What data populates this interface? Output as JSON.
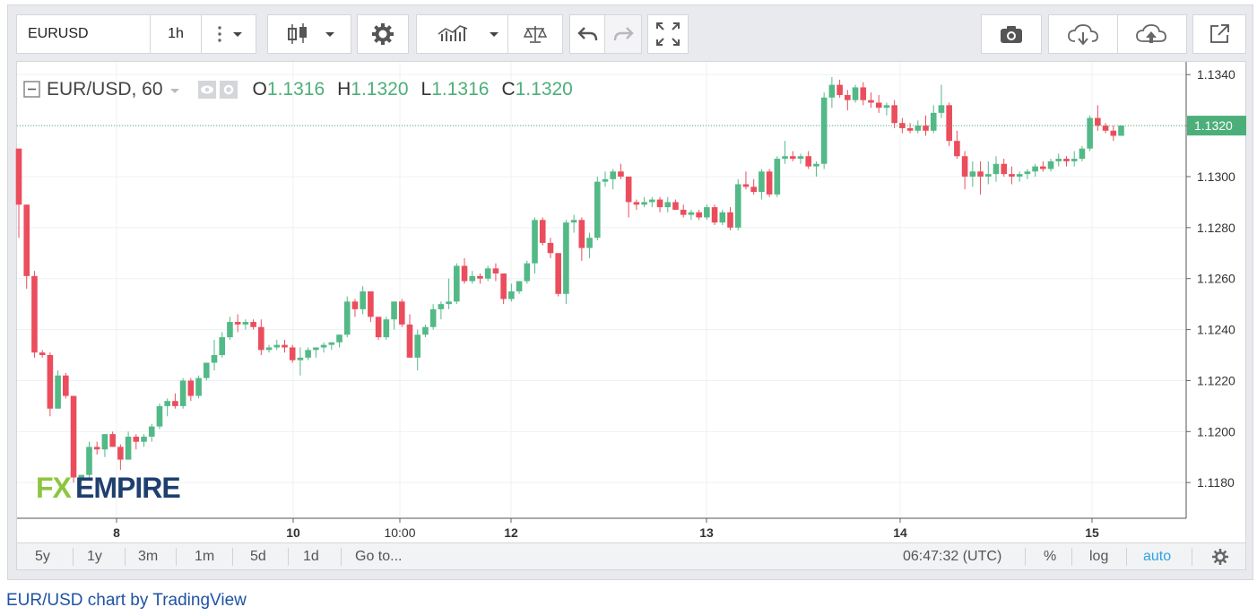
{
  "toolbar": {
    "symbol": "EURUSD",
    "interval": "1h",
    "icons": [
      "more-vert-icon",
      "chevron-down-icon",
      "candles-icon",
      "chevron-down-icon",
      "gear-icon",
      "indicators-icon",
      "chevron-down-icon",
      "compare-scale-icon",
      "undo-icon",
      "redo-icon",
      "fullscreen-icon",
      "camera-icon",
      "cloud-download-icon",
      "cloud-upload-icon",
      "popout-icon"
    ]
  },
  "legend": {
    "symbol_text": "EUR/USD, 60",
    "open_label": "O",
    "open_value": "1.1316",
    "high_label": "H",
    "high_value": "1.1320",
    "low_label": "L",
    "low_value": "1.1316",
    "close_label": "C",
    "close_value": "1.1320"
  },
  "watermark": "FXEMPIRE",
  "bottombar": {
    "ranges": [
      "5y",
      "1y",
      "3m",
      "1m",
      "5d",
      "1d"
    ],
    "goto": "Go to...",
    "time": "06:47:32 (UTC)",
    "percent": "%",
    "log": "log",
    "auto": "auto"
  },
  "footer": "EUR/USD chart by TradingView",
  "colors": {
    "up": "#53b987",
    "down": "#eb4d5c",
    "last_price": "#4caf7a",
    "auto": "#2fa3e3"
  },
  "chart_data": {
    "type": "candlestick",
    "yticks": [
      "1.1180",
      "1.1200",
      "1.1220",
      "1.1240",
      "1.1260",
      "1.1280",
      "1.1300",
      "1.1320",
      "1.1340"
    ],
    "xticks": [
      "8",
      "10",
      "10:00",
      "12",
      "13",
      "14",
      "15"
    ],
    "ylim": [
      1.1166,
      1.1345
    ],
    "last_price": "1.1320",
    "grid": true,
    "candles": [
      [
        1.1311,
        1.1311,
        1.1276,
        1.1289
      ],
      [
        1.1289,
        1.1289,
        1.1256,
        1.1261
      ],
      [
        1.1261,
        1.1263,
        1.1229,
        1.1231
      ],
      [
        1.1231,
        1.1232,
        1.1229,
        1.123
      ],
      [
        1.123,
        1.1231,
        1.1206,
        1.1209
      ],
      [
        1.1209,
        1.1224,
        1.1209,
        1.1222
      ],
      [
        1.1222,
        1.1223,
        1.1213,
        1.1214
      ],
      [
        1.1214,
        1.1214,
        1.118,
        1.1182
      ],
      [
        1.1182,
        1.1183,
        1.118,
        1.1183
      ],
      [
        1.1183,
        1.1196,
        1.1182,
        1.1194
      ],
      [
        1.1194,
        1.1196,
        1.1191,
        1.1193
      ],
      [
        1.1193,
        1.1199,
        1.119,
        1.1199
      ],
      [
        1.1199,
        1.12,
        1.1194,
        1.1194
      ],
      [
        1.1194,
        1.1195,
        1.1185,
        1.1189
      ],
      [
        1.1189,
        1.12,
        1.1189,
        1.1198
      ],
      [
        1.1198,
        1.1199,
        1.1193,
        1.1196
      ],
      [
        1.1196,
        1.1199,
        1.1194,
        1.1198
      ],
      [
        1.1198,
        1.1203,
        1.1196,
        1.1202
      ],
      [
        1.1202,
        1.1211,
        1.1201,
        1.121
      ],
      [
        1.121,
        1.1213,
        1.1206,
        1.1212
      ],
      [
        1.1212,
        1.1215,
        1.1209,
        1.121
      ],
      [
        1.121,
        1.1221,
        1.1209,
        1.122
      ],
      [
        1.122,
        1.1221,
        1.1212,
        1.1214
      ],
      [
        1.1214,
        1.1222,
        1.1213,
        1.1221
      ],
      [
        1.1221,
        1.1227,
        1.122,
        1.1227
      ],
      [
        1.1227,
        1.1236,
        1.1224,
        1.123
      ],
      [
        1.123,
        1.1239,
        1.1229,
        1.1237
      ],
      [
        1.1237,
        1.1245,
        1.1236,
        1.1243
      ],
      [
        1.1243,
        1.1246,
        1.1239,
        1.1242
      ],
      [
        1.1242,
        1.1244,
        1.124,
        1.1243
      ],
      [
        1.1243,
        1.1244,
        1.124,
        1.1241
      ],
      [
        1.1241,
        1.1244,
        1.123,
        1.1232
      ],
      [
        1.1232,
        1.1234,
        1.1231,
        1.1233
      ],
      [
        1.1233,
        1.1236,
        1.1232,
        1.1234
      ],
      [
        1.1234,
        1.1236,
        1.1231,
        1.1233
      ],
      [
        1.1233,
        1.1234,
        1.1227,
        1.1228
      ],
      [
        1.1228,
        1.1233,
        1.1222,
        1.1229
      ],
      [
        1.1229,
        1.1233,
        1.1228,
        1.1232
      ],
      [
        1.1232,
        1.1233,
        1.1229,
        1.1233
      ],
      [
        1.1233,
        1.1235,
        1.1231,
        1.1234
      ],
      [
        1.1234,
        1.1235,
        1.1232,
        1.1235
      ],
      [
        1.1235,
        1.1238,
        1.1233,
        1.1238
      ],
      [
        1.1238,
        1.1253,
        1.1237,
        1.1251
      ],
      [
        1.1251,
        1.1252,
        1.1245,
        1.1248
      ],
      [
        1.1248,
        1.1257,
        1.1246,
        1.1255
      ],
      [
        1.1255,
        1.1255,
        1.1243,
        1.1245
      ],
      [
        1.1245,
        1.1245,
        1.1236,
        1.1237
      ],
      [
        1.1237,
        1.1245,
        1.1236,
        1.1244
      ],
      [
        1.1244,
        1.125,
        1.124,
        1.1251
      ],
      [
        1.1251,
        1.1252,
        1.1241,
        1.1242
      ],
      [
        1.1242,
        1.1246,
        1.1229,
        1.1229
      ],
      [
        1.1229,
        1.124,
        1.1224,
        1.1238
      ],
      [
        1.1238,
        1.1242,
        1.1237,
        1.1241
      ],
      [
        1.1241,
        1.125,
        1.124,
        1.1248
      ],
      [
        1.1248,
        1.1251,
        1.1244,
        1.125
      ],
      [
        1.125,
        1.126,
        1.1248,
        1.1251
      ],
      [
        1.1251,
        1.1266,
        1.125,
        1.1265
      ],
      [
        1.1265,
        1.1268,
        1.1258,
        1.1259
      ],
      [
        1.1259,
        1.1263,
        1.1258,
        1.1261
      ],
      [
        1.1261,
        1.1262,
        1.1258,
        1.126
      ],
      [
        1.126,
        1.1265,
        1.1259,
        1.1264
      ],
      [
        1.1264,
        1.1266,
        1.1259,
        1.1262
      ],
      [
        1.1262,
        1.1262,
        1.125,
        1.1252
      ],
      [
        1.1252,
        1.1258,
        1.1251,
        1.1255
      ],
      [
        1.1255,
        1.1259,
        1.1254,
        1.1259
      ],
      [
        1.1259,
        1.1267,
        1.1258,
        1.1266
      ],
      [
        1.1266,
        1.1284,
        1.1262,
        1.1283
      ],
      [
        1.1283,
        1.1284,
        1.1273,
        1.1274
      ],
      [
        1.1274,
        1.1276,
        1.1268,
        1.127
      ],
      [
        1.127,
        1.127,
        1.1253,
        1.1254
      ],
      [
        1.1254,
        1.1283,
        1.125,
        1.1282
      ],
      [
        1.1282,
        1.1285,
        1.1278,
        1.1283
      ],
      [
        1.1283,
        1.1284,
        1.1267,
        1.1272
      ],
      [
        1.1272,
        1.1278,
        1.1268,
        1.1276
      ],
      [
        1.1276,
        1.13,
        1.1275,
        1.1298
      ],
      [
        1.1298,
        1.1302,
        1.1296,
        1.1299
      ],
      [
        1.1299,
        1.1303,
        1.1295,
        1.1302
      ],
      [
        1.1302,
        1.1305,
        1.1299,
        1.13
      ],
      [
        1.13,
        1.13,
        1.1284,
        1.129
      ],
      [
        1.129,
        1.1291,
        1.1287,
        1.1289
      ],
      [
        1.1289,
        1.1292,
        1.1288,
        1.129
      ],
      [
        1.129,
        1.1292,
        1.1288,
        1.1291
      ],
      [
        1.1291,
        1.1292,
        1.1286,
        1.1288
      ],
      [
        1.1288,
        1.1292,
        1.1286,
        1.129
      ],
      [
        1.129,
        1.1291,
        1.1287,
        1.1287
      ],
      [
        1.1287,
        1.1289,
        1.1284,
        1.1285
      ],
      [
        1.1285,
        1.1287,
        1.1283,
        1.1286
      ],
      [
        1.1286,
        1.1287,
        1.1283,
        1.1284
      ],
      [
        1.1284,
        1.1289,
        1.1283,
        1.1288
      ],
      [
        1.1288,
        1.1289,
        1.1281,
        1.1282
      ],
      [
        1.1282,
        1.1287,
        1.1281,
        1.1286
      ],
      [
        1.1286,
        1.1288,
        1.1279,
        1.128
      ],
      [
        1.128,
        1.1299,
        1.1279,
        1.1297
      ],
      [
        1.1297,
        1.1302,
        1.1295,
        1.1296
      ],
      [
        1.1296,
        1.1299,
        1.1293,
        1.1294
      ],
      [
        1.1294,
        1.1303,
        1.1291,
        1.1302
      ],
      [
        1.1302,
        1.1303,
        1.1292,
        1.1293
      ],
      [
        1.1293,
        1.1308,
        1.1292,
        1.1307
      ],
      [
        1.1307,
        1.1314,
        1.1305,
        1.1308
      ],
      [
        1.1308,
        1.131,
        1.1306,
        1.1307
      ],
      [
        1.1307,
        1.1309,
        1.1305,
        1.1308
      ],
      [
        1.1308,
        1.131,
        1.1303,
        1.1304
      ],
      [
        1.1304,
        1.1306,
        1.13,
        1.1305
      ],
      [
        1.1305,
        1.1333,
        1.1303,
        1.1331
      ],
      [
        1.1331,
        1.1339,
        1.1327,
        1.1336
      ],
      [
        1.1336,
        1.1338,
        1.1331,
        1.1332
      ],
      [
        1.1332,
        1.1334,
        1.1326,
        1.133
      ],
      [
        1.133,
        1.1336,
        1.1329,
        1.1335
      ],
      [
        1.1335,
        1.1337,
        1.1328,
        1.133
      ],
      [
        1.133,
        1.1333,
        1.1327,
        1.1329
      ],
      [
        1.1329,
        1.1332,
        1.1325,
        1.1327
      ],
      [
        1.1327,
        1.1329,
        1.1324,
        1.1328
      ],
      [
        1.1328,
        1.133,
        1.1319,
        1.1321
      ],
      [
        1.1321,
        1.1323,
        1.1317,
        1.1319
      ],
      [
        1.1319,
        1.1321,
        1.1317,
        1.1318
      ],
      [
        1.1318,
        1.1322,
        1.1317,
        1.132
      ],
      [
        1.132,
        1.1324,
        1.1316,
        1.1318
      ],
      [
        1.1318,
        1.1328,
        1.1317,
        1.1325
      ],
      [
        1.1325,
        1.1336,
        1.1323,
        1.1328
      ],
      [
        1.1328,
        1.1329,
        1.1312,
        1.1314
      ],
      [
        1.1314,
        1.1318,
        1.1307,
        1.1308
      ],
      [
        1.1308,
        1.131,
        1.1295,
        1.13
      ],
      [
        1.13,
        1.1306,
        1.1296,
        1.1302
      ],
      [
        1.1302,
        1.1306,
        1.1293,
        1.13
      ],
      [
        1.13,
        1.1306,
        1.1297,
        1.1301
      ],
      [
        1.1301,
        1.1308,
        1.1298,
        1.1305
      ],
      [
        1.1305,
        1.1307,
        1.13,
        1.1301
      ],
      [
        1.1301,
        1.1304,
        1.1297,
        1.13
      ],
      [
        1.13,
        1.1302,
        1.1298,
        1.1301
      ],
      [
        1.1301,
        1.1303,
        1.1299,
        1.1302
      ],
      [
        1.1302,
        1.1305,
        1.13,
        1.1304
      ],
      [
        1.1304,
        1.1306,
        1.1302,
        1.1303
      ],
      [
        1.1303,
        1.1307,
        1.1302,
        1.1306
      ],
      [
        1.1306,
        1.1309,
        1.1304,
        1.1307
      ],
      [
        1.1307,
        1.1308,
        1.1304,
        1.1306
      ],
      [
        1.1306,
        1.131,
        1.1304,
        1.1307
      ],
      [
        1.1307,
        1.1312,
        1.1306,
        1.1311
      ],
      [
        1.1311,
        1.1324,
        1.131,
        1.1323
      ],
      [
        1.1323,
        1.1328,
        1.1318,
        1.132
      ],
      [
        1.132,
        1.1321,
        1.1317,
        1.1318
      ],
      [
        1.1318,
        1.132,
        1.1314,
        1.1316
      ],
      [
        1.1316,
        1.132,
        1.1316,
        1.132
      ]
    ]
  }
}
